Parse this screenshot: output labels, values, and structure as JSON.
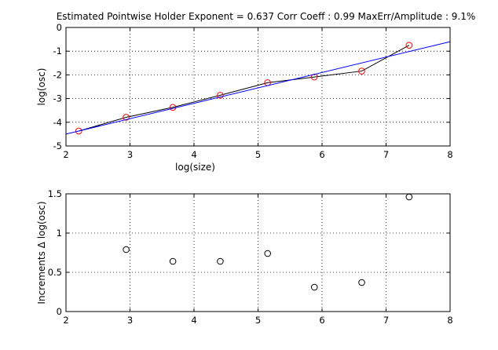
{
  "chart_data": [
    {
      "type": "line",
      "title": "Estimated Pointwise Holder Exponent = 0.637     Corr Coeff : 0.99     MaxErr/Amplitude : 9.1%",
      "xlabel": "log(size)",
      "ylabel": "log(osc)",
      "xlim": [
        2,
        8
      ],
      "ylim": [
        -5,
        0
      ],
      "xticks": [
        "2",
        "3",
        "4",
        "5",
        "6",
        "7",
        "8"
      ],
      "yticks": [
        "-5",
        "-4",
        "-3",
        "-2",
        "-1",
        "0"
      ],
      "grid": true,
      "series": [
        {
          "style": "circles-connected",
          "marker_color": "#ff0000",
          "line_color": "#000000",
          "x": [
            2.2,
            2.94,
            3.67,
            4.41,
            5.15,
            5.88,
            6.62,
            7.36
          ],
          "y": [
            -4.37,
            -3.79,
            -3.37,
            -2.86,
            -2.33,
            -2.09,
            -1.84,
            -0.75
          ]
        },
        {
          "style": "line",
          "line_color": "#0000ff",
          "x": [
            2,
            8
          ],
          "y": [
            -4.5,
            -0.6
          ]
        }
      ]
    },
    {
      "type": "scatter",
      "title": "",
      "xlabel": "",
      "ylabel": "Increments Δ log(osc)",
      "xlim": [
        2,
        8
      ],
      "ylim": [
        0,
        1.5
      ],
      "xticks": [
        "2",
        "3",
        "4",
        "5",
        "6",
        "7",
        "8"
      ],
      "yticks": [
        "0",
        "0.5",
        "1",
        "1.5"
      ],
      "grid": true,
      "series": [
        {
          "style": "circles",
          "marker_color": "#000000",
          "x": [
            2.94,
            3.67,
            4.41,
            5.15,
            5.88,
            6.62,
            7.36
          ],
          "y": [
            0.79,
            0.64,
            0.64,
            0.74,
            0.31,
            0.37,
            1.46
          ]
        }
      ]
    }
  ]
}
